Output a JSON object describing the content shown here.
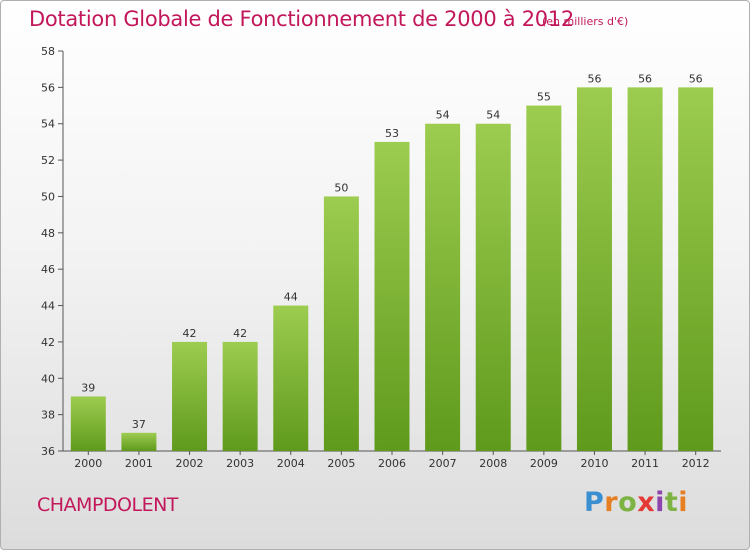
{
  "title": "Dotation Globale de Fonctionnement de 2000 à 2012",
  "subtitle": "(en milliers d'€)",
  "place": "CHAMPDOLENT",
  "brand": "Proxiti",
  "colors": {
    "accent": "#c2185b",
    "bar": "#7cb342"
  },
  "chart_data": {
    "type": "bar",
    "title": "Dotation Globale de Fonctionnement de 2000 à 2012",
    "subtitle": "(en milliers d'€)",
    "categories": [
      "2000",
      "2001",
      "2002",
      "2003",
      "2004",
      "2005",
      "2006",
      "2007",
      "2008",
      "2009",
      "2010",
      "2011",
      "2012"
    ],
    "values": [
      39,
      37,
      42,
      42,
      44,
      50,
      53,
      54,
      54,
      55,
      56,
      56,
      56
    ],
    "ylim": [
      36,
      58
    ],
    "yticks": [
      36,
      38,
      40,
      42,
      44,
      46,
      48,
      50,
      52,
      54,
      56,
      58
    ],
    "grid": false,
    "xlabel": "",
    "ylabel": ""
  }
}
